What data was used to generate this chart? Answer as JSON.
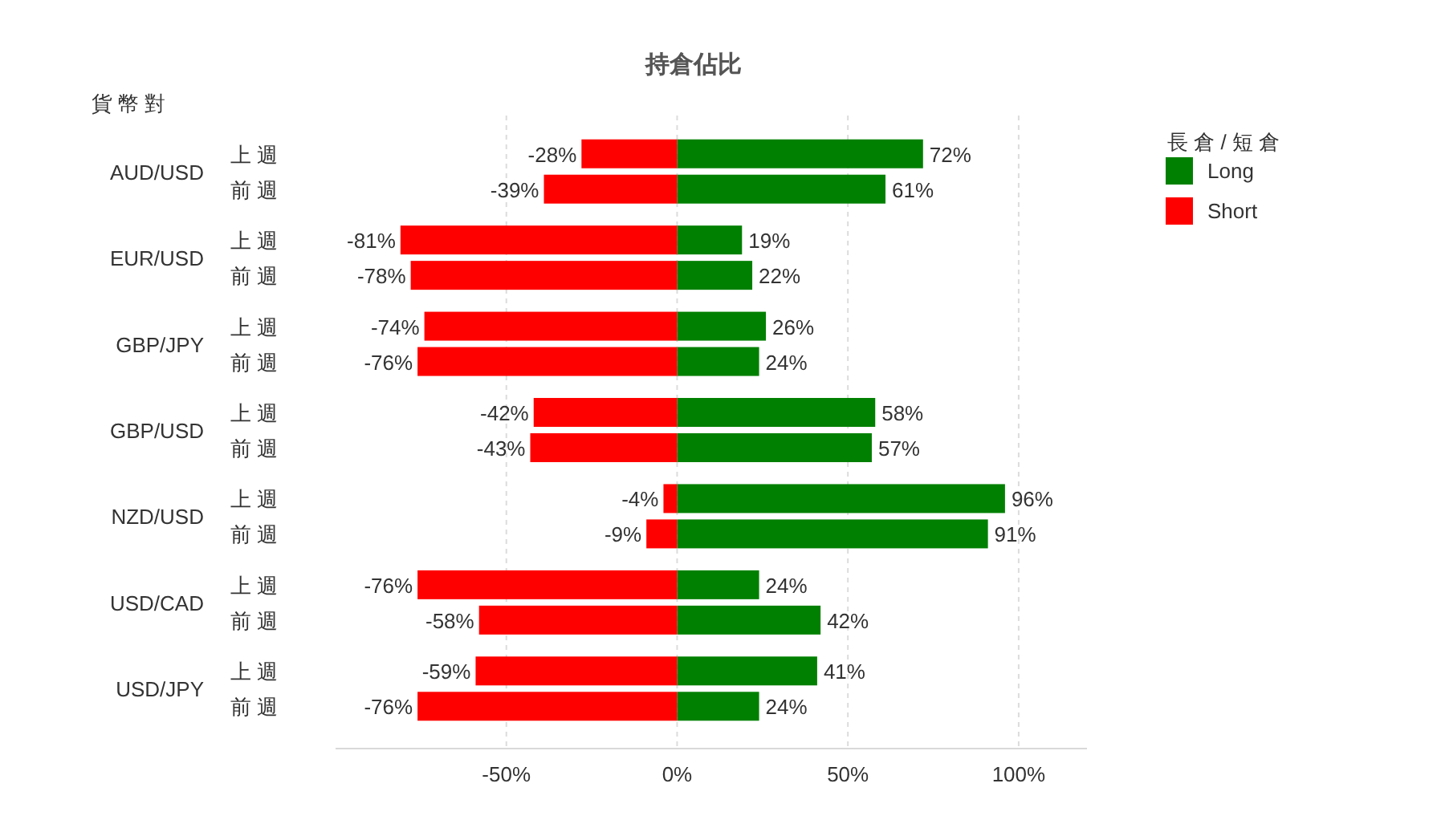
{
  "chart_data": {
    "type": "bar",
    "orientation": "horizontal",
    "stacked": true,
    "title": "持倉佔比",
    "ylabel": "貨 幣 對",
    "legend_title": "長 倉 / 短 倉",
    "categories": [
      "上 週",
      "前 週",
      "上 週",
      "前 週",
      "上 週",
      "前 週",
      "上 週",
      "前 週",
      "上 週",
      "前 週",
      "上 週",
      "前 週",
      "上 週",
      "前 週"
    ],
    "annotations": [
      "AUD/USD",
      "EUR/USD",
      "GBP/JPY",
      "GBP/USD",
      "NZD/USD",
      "USD/CAD",
      "USD/JPY"
    ],
    "series": [
      {
        "name": "Long",
        "color": "#008000",
        "values": [
          72,
          61,
          19,
          22,
          26,
          24,
          58,
          57,
          96,
          91,
          24,
          42,
          41,
          24
        ],
        "value_labels": [
          "72%",
          "61%",
          "19%",
          "22%",
          "26%",
          "24%",
          "58%",
          "57%",
          "96%",
          "91%",
          "24%",
          "42%",
          "41%",
          "24%"
        ]
      },
      {
        "name": "Short",
        "color": "#ff0000",
        "values": [
          -28,
          -39,
          -81,
          -78,
          -74,
          -76,
          -42,
          -43,
          -4,
          -9,
          -76,
          -58,
          -59,
          -76
        ],
        "value_labels": [
          "-28%",
          "-39%",
          "-81%",
          "-78%",
          "-74%",
          "-76%",
          "-42%",
          "-43%",
          "-4%",
          "-9%",
          "-76%",
          "-58%",
          "-59%",
          "-76%"
        ]
      }
    ],
    "xlim": [
      -100,
      120
    ],
    "xticks": [
      {
        "value": -50,
        "label": "-50%"
      },
      {
        "value": 0,
        "label": "0%"
      },
      {
        "value": 50,
        "label": "50%"
      },
      {
        "value": 100,
        "label": "100%"
      }
    ],
    "grid": "x",
    "legend": "top right"
  }
}
